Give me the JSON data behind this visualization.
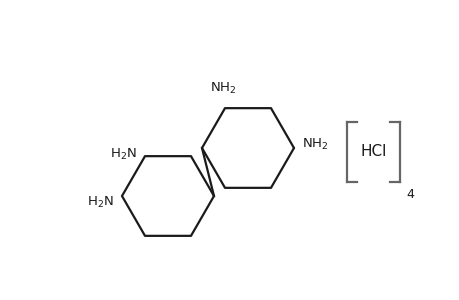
{
  "background_color": "#ffffff",
  "line_color": "#1a1a1a",
  "text_color": "#1a1a1a",
  "fig_width": 4.6,
  "fig_height": 3.0,
  "dpi": 100,
  "bracket_color": "#666666",
  "ring_lw": 1.6,
  "bond_lw": 1.6,
  "bracket_lw": 1.6,
  "font_size": 9.5,
  "hcl_font_size": 11,
  "sub4_font_size": 9
}
